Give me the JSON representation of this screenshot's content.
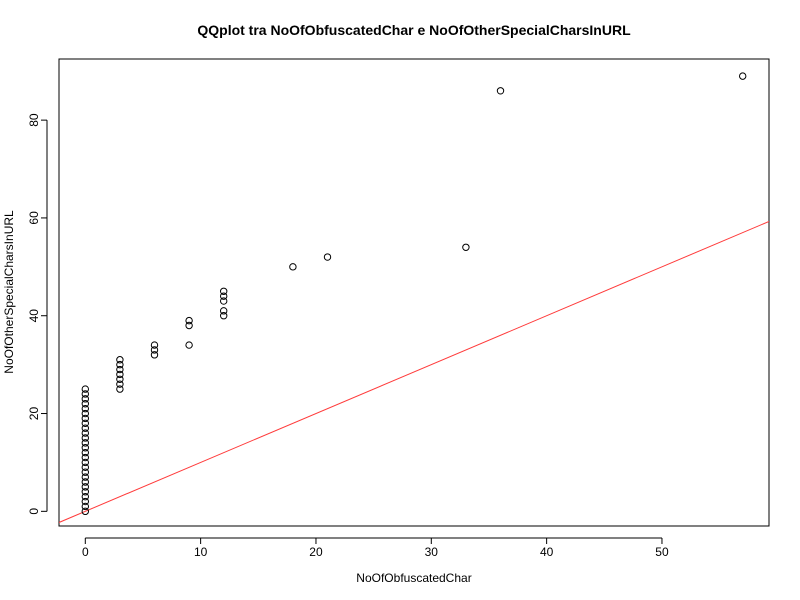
{
  "chart_data": {
    "type": "scatter",
    "title": "QQplot tra NoOfObfuscatedChar e NoOfOtherSpecialCharsInURL",
    "xlabel": "NoOfObfuscatedChar",
    "ylabel": "NoOfOtherSpecialCharsInURL",
    "xlim": [
      -2.28,
      59.28
    ],
    "ylim": [
      -3.0,
      92.5
    ],
    "x_ticks": [
      0,
      10,
      20,
      30,
      40,
      50
    ],
    "y_ticks": [
      0,
      20,
      40,
      60,
      80
    ],
    "grid": false,
    "legend": "none",
    "marker": "open-circle",
    "points": [
      [
        0,
        0
      ],
      [
        0,
        1
      ],
      [
        0,
        2
      ],
      [
        0,
        3
      ],
      [
        0,
        4
      ],
      [
        0,
        5
      ],
      [
        0,
        6
      ],
      [
        0,
        7
      ],
      [
        0,
        8
      ],
      [
        0,
        9
      ],
      [
        0,
        10
      ],
      [
        0,
        11
      ],
      [
        0,
        12
      ],
      [
        0,
        13
      ],
      [
        0,
        14
      ],
      [
        0,
        15
      ],
      [
        0,
        16
      ],
      [
        0,
        17
      ],
      [
        0,
        18
      ],
      [
        0,
        19
      ],
      [
        0,
        20
      ],
      [
        0,
        21
      ],
      [
        0,
        22
      ],
      [
        0,
        23
      ],
      [
        0,
        24
      ],
      [
        0,
        25
      ],
      [
        3,
        25
      ],
      [
        3,
        26
      ],
      [
        3,
        27
      ],
      [
        3,
        28
      ],
      [
        3,
        29
      ],
      [
        3,
        30
      ],
      [
        3,
        31
      ],
      [
        6,
        32
      ],
      [
        6,
        33
      ],
      [
        6,
        34
      ],
      [
        9,
        34
      ],
      [
        9,
        38
      ],
      [
        9,
        39
      ],
      [
        12,
        40
      ],
      [
        12,
        41
      ],
      [
        12,
        43
      ],
      [
        12,
        44
      ],
      [
        12,
        45
      ],
      [
        18,
        50
      ],
      [
        21,
        52
      ],
      [
        33,
        54
      ],
      [
        36,
        86
      ],
      [
        57,
        89
      ]
    ],
    "reference_line": {
      "intercept": 0,
      "slope": 1,
      "color": "#ff0000"
    },
    "colors": {
      "points": "#000000",
      "line": "#ff3b3b",
      "frame": "#000000"
    }
  }
}
